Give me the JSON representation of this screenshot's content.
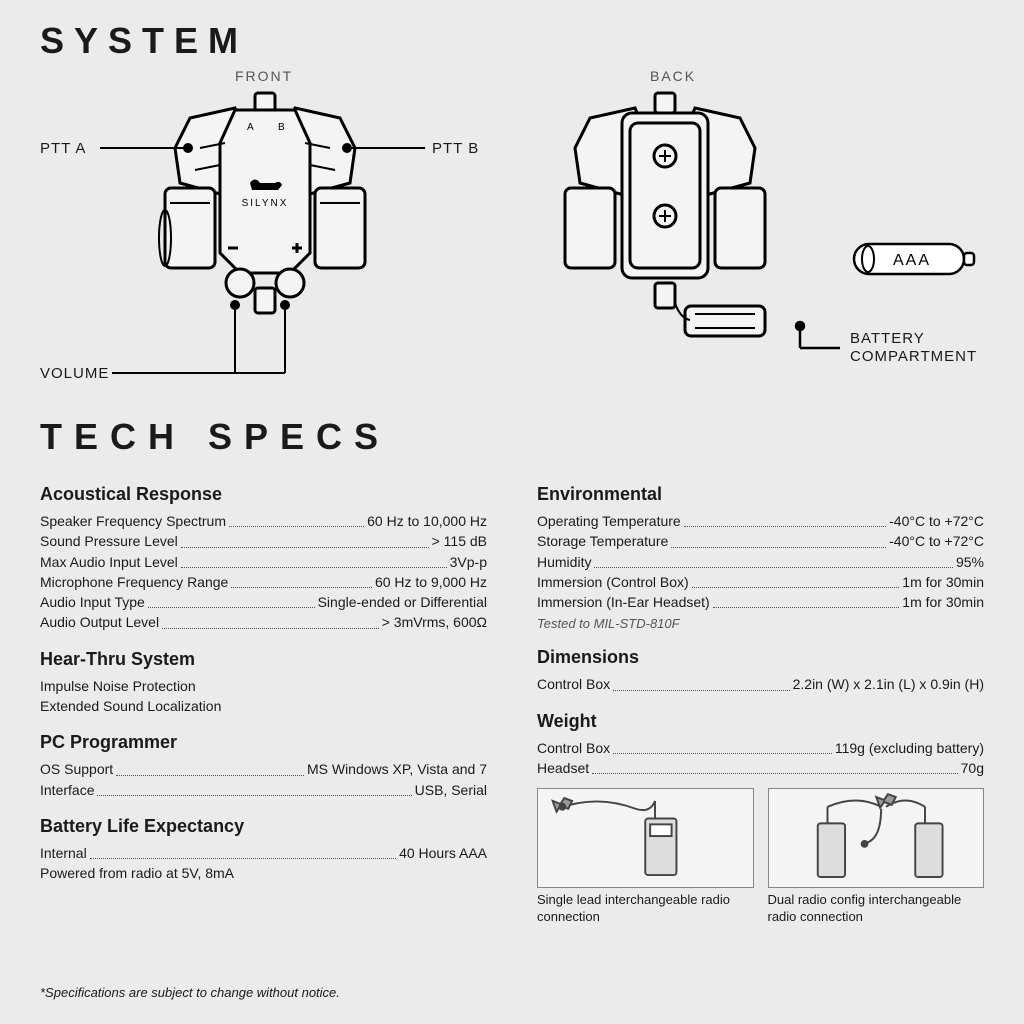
{
  "titles": {
    "system": "SYSTEM",
    "tech_specs": "TECH SPECS"
  },
  "diagram": {
    "front_label": "FRONT",
    "back_label": "BACK",
    "ptt_a": "PTT A",
    "ptt_b": "PTT B",
    "volume": "VOLUME",
    "battery_compartment_l1": "BATTERY",
    "battery_compartment_l2": "COMPARTMENT",
    "battery_text": "AAA",
    "brand": "SILYNX",
    "label_a": "A",
    "label_b": "B"
  },
  "colors": {
    "bg": "#ebebeb",
    "text": "#1a1a1a",
    "muted": "#555555",
    "stroke": "#000000",
    "fill": "#f4f4f4",
    "box_border": "#888888"
  },
  "left_col": [
    {
      "heading": "Acoustical Response",
      "rows": [
        {
          "label": "Speaker Frequency Spectrum",
          "value": "60 Hz to 10,000 Hz"
        },
        {
          "label": "Sound Pressure Level",
          "value": "> 115 dB"
        },
        {
          "label": "Max Audio Input Level",
          "value": "3Vp-p"
        },
        {
          "label": "Microphone Frequency Range",
          "value": "60 Hz to 9,000 Hz"
        },
        {
          "label": "Audio Input Type",
          "value": "Single-ended or Differential"
        },
        {
          "label": "Audio Output Level",
          "value": "> 3mVrms, 600Ω"
        }
      ]
    },
    {
      "heading": "Hear-Thru System",
      "lines": [
        "Impulse Noise Protection",
        "Extended Sound Localization"
      ]
    },
    {
      "heading": "PC Programmer",
      "rows": [
        {
          "label": "OS Support",
          "value": "MS Windows XP, Vista and 7"
        },
        {
          "label": "Interface",
          "value": "USB, Serial"
        }
      ]
    },
    {
      "heading": "Battery Life Expectancy",
      "rows": [
        {
          "label": "Internal",
          "value": "40 Hours AAA"
        }
      ],
      "lines_after": [
        "Powered from radio at 5V, 8mA"
      ]
    }
  ],
  "right_col": [
    {
      "heading": "Environmental",
      "rows": [
        {
          "label": "Operating Temperature",
          "value": "-40°C to +72°C"
        },
        {
          "label": "Storage Temperature",
          "value": "-40°C to +72°C"
        },
        {
          "label": "Humidity",
          "value": "95%"
        },
        {
          "label": "Immersion (Control Box)",
          "value": "1m for 30min"
        },
        {
          "label": "Immersion (In-Ear Headset)",
          "value": "1m for 30min"
        }
      ],
      "note": "Tested to MIL-STD-810F"
    },
    {
      "heading": "Dimensions",
      "rows": [
        {
          "label": "Control Box ",
          "value": "2.2in (W) x 2.1in (L) x 0.9in (H)"
        }
      ]
    },
    {
      "heading": "Weight",
      "rows": [
        {
          "label": "Control Box",
          "value": "119g (excluding battery)"
        },
        {
          "label": "Headset",
          "value": "70g"
        }
      ]
    }
  ],
  "configs": {
    "single": "Single lead interchangeable radio connection",
    "dual": "Dual radio config interchangeable radio connection"
  },
  "footnote": "*Specifications are subject to change without notice."
}
